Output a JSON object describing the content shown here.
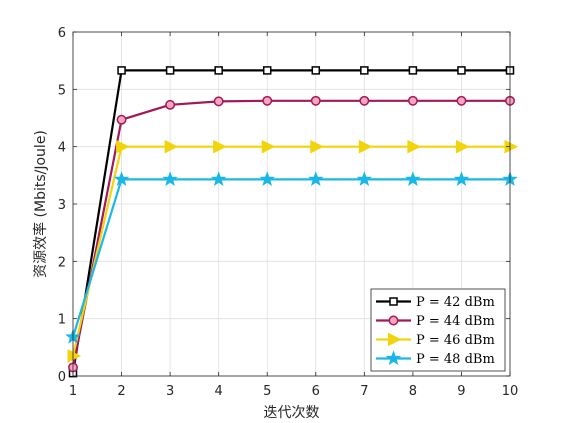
{
  "chart_data": {
    "type": "line",
    "title": "",
    "xlabel": "迭代次数",
    "ylabel": "资源效率 (Mbits/Joule)",
    "x": [
      1,
      2,
      3,
      4,
      5,
      6,
      7,
      8,
      9,
      10
    ],
    "xlim": [
      1,
      10
    ],
    "ylim": [
      0,
      6
    ],
    "xticks": [
      "1",
      "2",
      "3",
      "4",
      "5",
      "6",
      "7",
      "8",
      "9",
      "10"
    ],
    "yticks": [
      "0",
      "1",
      "2",
      "3",
      "4",
      "5",
      "6"
    ],
    "grid": true,
    "legend_position": "bottom-right",
    "series": [
      {
        "name": "P = 42 dBm",
        "color": "#000000",
        "marker": "square",
        "values": [
          0.05,
          5.33,
          5.33,
          5.33,
          5.33,
          5.33,
          5.33,
          5.33,
          5.33,
          5.33
        ]
      },
      {
        "name": "P = 44 dBm",
        "color": "#A2195A",
        "marker": "circle",
        "values": [
          0.15,
          4.47,
          4.73,
          4.79,
          4.8,
          4.8,
          4.8,
          4.8,
          4.8,
          4.8
        ]
      },
      {
        "name": "P = 46 dBm",
        "color": "#F2D40D",
        "marker": "triangle-right",
        "values": [
          0.35,
          4.0,
          4.0,
          4.0,
          4.0,
          4.0,
          4.0,
          4.0,
          4.0,
          4.0
        ]
      },
      {
        "name": "P = 48 dBm",
        "color": "#1BB7E6",
        "marker": "star",
        "values": [
          0.68,
          3.43,
          3.43,
          3.43,
          3.43,
          3.43,
          3.43,
          3.43,
          3.43,
          3.43
        ]
      }
    ]
  }
}
